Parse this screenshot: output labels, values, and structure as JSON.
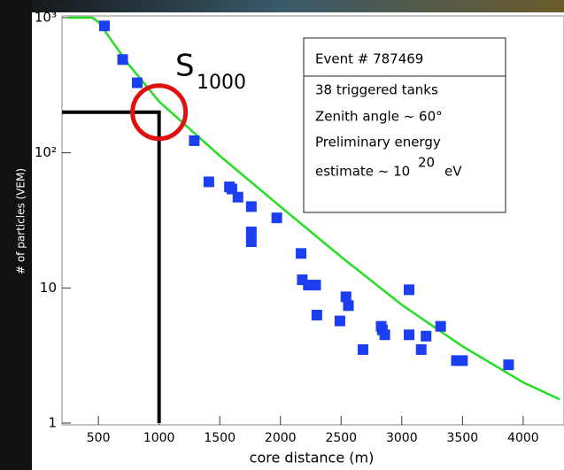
{
  "chart_data": {
    "type": "scatter",
    "x_label": "core distance (m)",
    "y_label": "# of particles (VEM)",
    "log_y": true,
    "xlim": [
      200,
      4300
    ],
    "ylim": [
      1,
      1000
    ],
    "xticks": [
      500,
      1000,
      1500,
      2000,
      2500,
      3000,
      3500,
      4000
    ],
    "yticks": [
      {
        "value": 1,
        "label": "1"
      },
      {
        "value": 10,
        "label": "10"
      },
      {
        "value": 100,
        "label": "10²"
      },
      {
        "value": 1000,
        "label": "10³"
      }
    ],
    "series": [
      {
        "color": "#1a3ef0",
        "x": [
          550,
          700,
          820,
          1290,
          1410,
          1580,
          1600,
          1650,
          1760,
          1760,
          1760,
          1970,
          2170,
          2180,
          2230,
          2290,
          2300,
          2490,
          2540,
          2560,
          2680,
          2830,
          2840,
          2860,
          3060,
          3060,
          3160,
          3200,
          3320,
          3450,
          3500,
          3880
        ],
        "values": [
          870,
          490,
          330,
          123,
          61,
          56,
          54,
          47,
          40,
          26,
          22,
          33,
          18,
          11.5,
          10.5,
          10.5,
          6.3,
          5.7,
          8.6,
          7.4,
          3.5,
          5.2,
          4.9,
          4.5,
          9.7,
          4.5,
          3.5,
          4.4,
          5.2,
          2.9,
          2.9,
          2.7
        ]
      },
      {
        "color": "#22dd22",
        "x": [
          250,
          450,
          500,
          750,
          1000,
          1500,
          2000,
          2500,
          3000,
          3500,
          4000,
          4300
        ],
        "values": [
          1000,
          1000,
          930,
          450,
          240,
          95,
          40,
          17,
          7.5,
          3.7,
          2.0,
          1.5
        ]
      }
    ],
    "s1000": {
      "x": 1000,
      "y": 200
    },
    "annotation": {
      "text": "S",
      "subscript": "1000"
    },
    "info": {
      "title": "Event # 787469",
      "lines": [
        "38 triggered tanks",
        "Zenith angle ~ 60°",
        "Preliminary energy"
      ],
      "energy": "estimate ~ 10",
      "exponent": "20",
      "unit": "eV"
    }
  }
}
